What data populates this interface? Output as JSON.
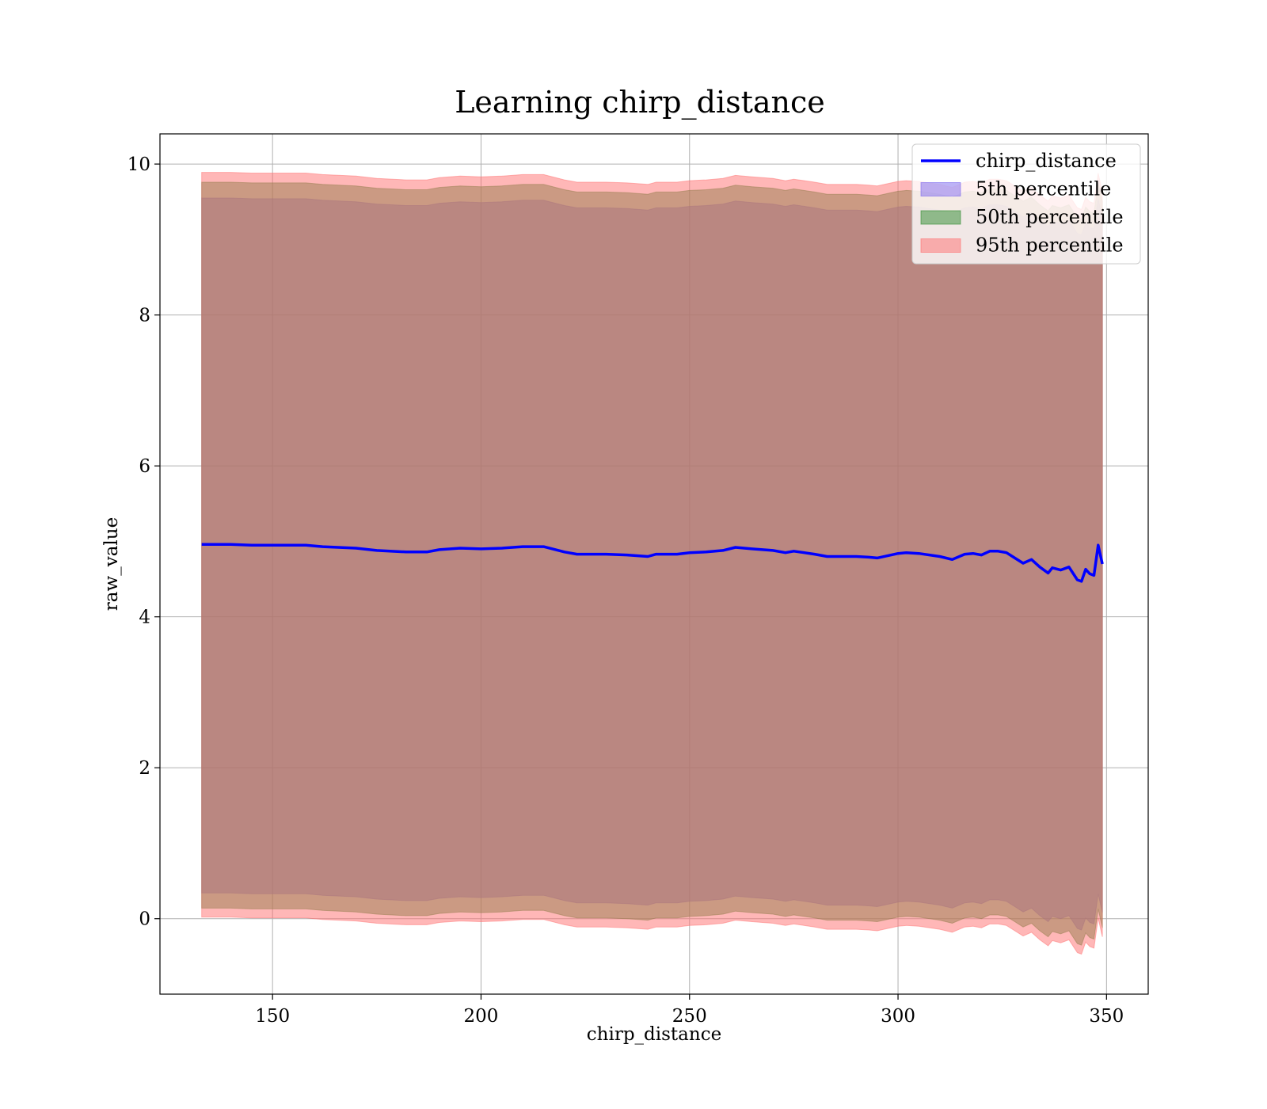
{
  "chart_data": {
    "type": "area",
    "title": "Learning chirp_distance",
    "xlabel": "chirp_distance",
    "ylabel": "raw_value",
    "xlim": [
      123,
      360
    ],
    "ylim": [
      -1,
      10.4
    ],
    "xticks": [
      150,
      200,
      250,
      300,
      350
    ],
    "yticks": [
      0,
      2,
      4,
      6,
      8,
      10
    ],
    "grid": true,
    "legend_position": "top-right",
    "x": [
      133,
      140,
      145,
      150,
      158,
      162,
      170,
      175,
      182,
      187,
      190,
      195,
      200,
      205,
      210,
      215,
      220,
      223,
      230,
      235,
      240,
      242,
      247,
      250,
      254,
      258,
      261,
      265,
      270,
      273,
      275,
      280,
      283,
      290,
      293,
      295,
      300,
      302,
      305,
      310,
      313,
      316,
      318,
      320,
      322,
      324,
      326,
      328,
      330,
      332,
      334,
      336,
      337,
      339,
      341,
      343,
      344,
      345,
      346,
      347,
      348,
      349
    ],
    "series": [
      {
        "name": "chirp_distance",
        "kind": "line",
        "color": "#0000ff",
        "values": [
          4.96,
          4.96,
          4.95,
          4.95,
          4.95,
          4.93,
          4.91,
          4.88,
          4.86,
          4.86,
          4.89,
          4.91,
          4.9,
          4.91,
          4.93,
          4.93,
          4.86,
          4.83,
          4.83,
          4.82,
          4.8,
          4.83,
          4.83,
          4.85,
          4.86,
          4.88,
          4.92,
          4.9,
          4.88,
          4.85,
          4.87,
          4.83,
          4.8,
          4.8,
          4.79,
          4.78,
          4.84,
          4.85,
          4.84,
          4.8,
          4.76,
          4.83,
          4.84,
          4.82,
          4.87,
          4.87,
          4.85,
          4.78,
          4.71,
          4.76,
          4.66,
          4.58,
          4.65,
          4.62,
          4.66,
          4.49,
          4.47,
          4.63,
          4.57,
          4.55,
          4.95,
          4.7
        ]
      },
      {
        "name": "5th percentile",
        "kind": "band",
        "color": "#7b68ee",
        "lower": [
          0.34,
          0.34,
          0.33,
          0.33,
          0.33,
          0.31,
          0.29,
          0.26,
          0.24,
          0.24,
          0.27,
          0.29,
          0.28,
          0.29,
          0.31,
          0.31,
          0.24,
          0.21,
          0.21,
          0.2,
          0.18,
          0.21,
          0.21,
          0.23,
          0.24,
          0.26,
          0.3,
          0.28,
          0.26,
          0.23,
          0.25,
          0.21,
          0.18,
          0.18,
          0.17,
          0.16,
          0.22,
          0.23,
          0.22,
          0.18,
          0.14,
          0.21,
          0.22,
          0.2,
          0.25,
          0.25,
          0.23,
          0.16,
          0.09,
          0.14,
          0.04,
          -0.04,
          0.03,
          0.0,
          0.04,
          -0.13,
          -0.15,
          0.01,
          -0.05,
          -0.07,
          0.33,
          0.08
        ],
        "upper": [
          9.55,
          9.55,
          9.54,
          9.54,
          9.54,
          9.52,
          9.5,
          9.47,
          9.45,
          9.45,
          9.48,
          9.5,
          9.49,
          9.5,
          9.52,
          9.52,
          9.45,
          9.42,
          9.42,
          9.41,
          9.39,
          9.42,
          9.42,
          9.44,
          9.45,
          9.47,
          9.51,
          9.49,
          9.47,
          9.44,
          9.46,
          9.42,
          9.39,
          9.39,
          9.38,
          9.37,
          9.43,
          9.44,
          9.43,
          9.39,
          9.35,
          9.42,
          9.43,
          9.41,
          9.46,
          9.46,
          9.44,
          9.37,
          9.3,
          9.35,
          9.25,
          9.17,
          9.24,
          9.21,
          9.25,
          9.08,
          9.06,
          9.22,
          9.16,
          9.14,
          9.54,
          9.29
        ]
      },
      {
        "name": "50th percentile",
        "kind": "band",
        "color": "#2e8b2e",
        "lower": [
          0.14,
          0.14,
          0.13,
          0.13,
          0.13,
          0.11,
          0.09,
          0.06,
          0.04,
          0.04,
          0.07,
          0.09,
          0.08,
          0.09,
          0.11,
          0.11,
          0.04,
          0.01,
          0.01,
          0.0,
          -0.02,
          0.01,
          0.01,
          0.03,
          0.04,
          0.06,
          0.1,
          0.08,
          0.06,
          0.03,
          0.05,
          0.01,
          -0.02,
          -0.02,
          -0.03,
          -0.04,
          0.02,
          0.03,
          0.02,
          -0.02,
          -0.06,
          0.01,
          0.02,
          0.0,
          0.05,
          0.05,
          0.03,
          -0.04,
          -0.11,
          -0.06,
          -0.16,
          -0.24,
          -0.17,
          -0.2,
          -0.16,
          -0.33,
          -0.35,
          -0.19,
          -0.25,
          -0.27,
          0.13,
          -0.12
        ],
        "upper": [
          9.76,
          9.76,
          9.75,
          9.75,
          9.75,
          9.73,
          9.71,
          9.68,
          9.66,
          9.66,
          9.69,
          9.71,
          9.7,
          9.71,
          9.73,
          9.73,
          9.66,
          9.63,
          9.63,
          9.62,
          9.6,
          9.63,
          9.63,
          9.65,
          9.66,
          9.68,
          9.72,
          9.7,
          9.68,
          9.65,
          9.67,
          9.63,
          9.6,
          9.6,
          9.59,
          9.58,
          9.64,
          9.65,
          9.64,
          9.6,
          9.56,
          9.63,
          9.64,
          9.62,
          9.67,
          9.67,
          9.65,
          9.58,
          9.51,
          9.56,
          9.46,
          9.38,
          9.45,
          9.42,
          9.46,
          9.29,
          9.27,
          9.43,
          9.37,
          9.35,
          9.75,
          9.5
        ]
      },
      {
        "name": "95th percentile",
        "kind": "band",
        "color": "#ff6f6f",
        "lower": [
          0.02,
          0.02,
          0.01,
          0.01,
          0.01,
          -0.01,
          -0.03,
          -0.06,
          -0.08,
          -0.08,
          -0.05,
          -0.03,
          -0.04,
          -0.03,
          -0.01,
          -0.01,
          -0.08,
          -0.11,
          -0.11,
          -0.12,
          -0.14,
          -0.11,
          -0.11,
          -0.09,
          -0.08,
          -0.06,
          -0.02,
          -0.04,
          -0.06,
          -0.09,
          -0.07,
          -0.11,
          -0.14,
          -0.14,
          -0.15,
          -0.16,
          -0.1,
          -0.09,
          -0.1,
          -0.14,
          -0.18,
          -0.11,
          -0.1,
          -0.12,
          -0.07,
          -0.07,
          -0.09,
          -0.16,
          -0.23,
          -0.18,
          -0.28,
          -0.36,
          -0.29,
          -0.32,
          -0.28,
          -0.45,
          -0.47,
          -0.31,
          -0.37,
          -0.39,
          0.01,
          -0.24
        ],
        "upper": [
          9.89,
          9.89,
          9.88,
          9.88,
          9.88,
          9.86,
          9.84,
          9.81,
          9.79,
          9.79,
          9.82,
          9.84,
          9.83,
          9.84,
          9.86,
          9.86,
          9.79,
          9.76,
          9.76,
          9.75,
          9.73,
          9.76,
          9.76,
          9.78,
          9.79,
          9.81,
          9.85,
          9.83,
          9.81,
          9.78,
          9.8,
          9.76,
          9.73,
          9.73,
          9.72,
          9.71,
          9.77,
          9.78,
          9.77,
          9.73,
          9.69,
          9.76,
          9.77,
          9.75,
          9.8,
          9.8,
          9.78,
          9.71,
          9.64,
          9.69,
          9.59,
          9.51,
          9.58,
          9.55,
          9.59,
          9.42,
          9.4,
          9.56,
          9.5,
          9.48,
          9.88,
          9.63
        ]
      }
    ]
  }
}
